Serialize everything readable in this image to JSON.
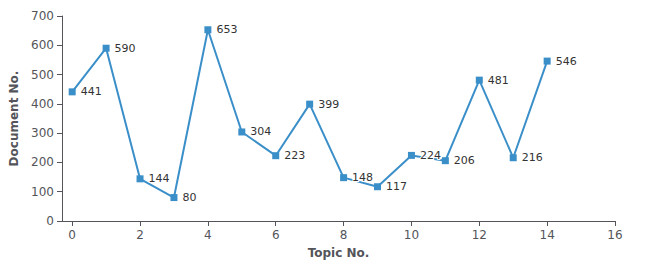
{
  "chart_data": {
    "type": "line",
    "x": [
      0,
      1,
      2,
      3,
      4,
      5,
      6,
      7,
      8,
      9,
      10,
      11,
      12,
      13,
      14
    ],
    "values": [
      441,
      590,
      144,
      80,
      653,
      304,
      223,
      399,
      148,
      117,
      224,
      206,
      481,
      216,
      546
    ],
    "color": "#3B8FC9",
    "marker": "square",
    "data_labels": true,
    "xlabel": "Topic No.",
    "ylabel": "Document No.",
    "xlim": [
      -0.3,
      16
    ],
    "xticks": [
      0,
      2,
      4,
      6,
      8,
      10,
      12,
      14,
      16
    ],
    "ylim": [
      0,
      700
    ],
    "yticks": [
      0,
      100,
      200,
      300,
      400,
      500,
      600,
      700
    ],
    "grid": false
  }
}
